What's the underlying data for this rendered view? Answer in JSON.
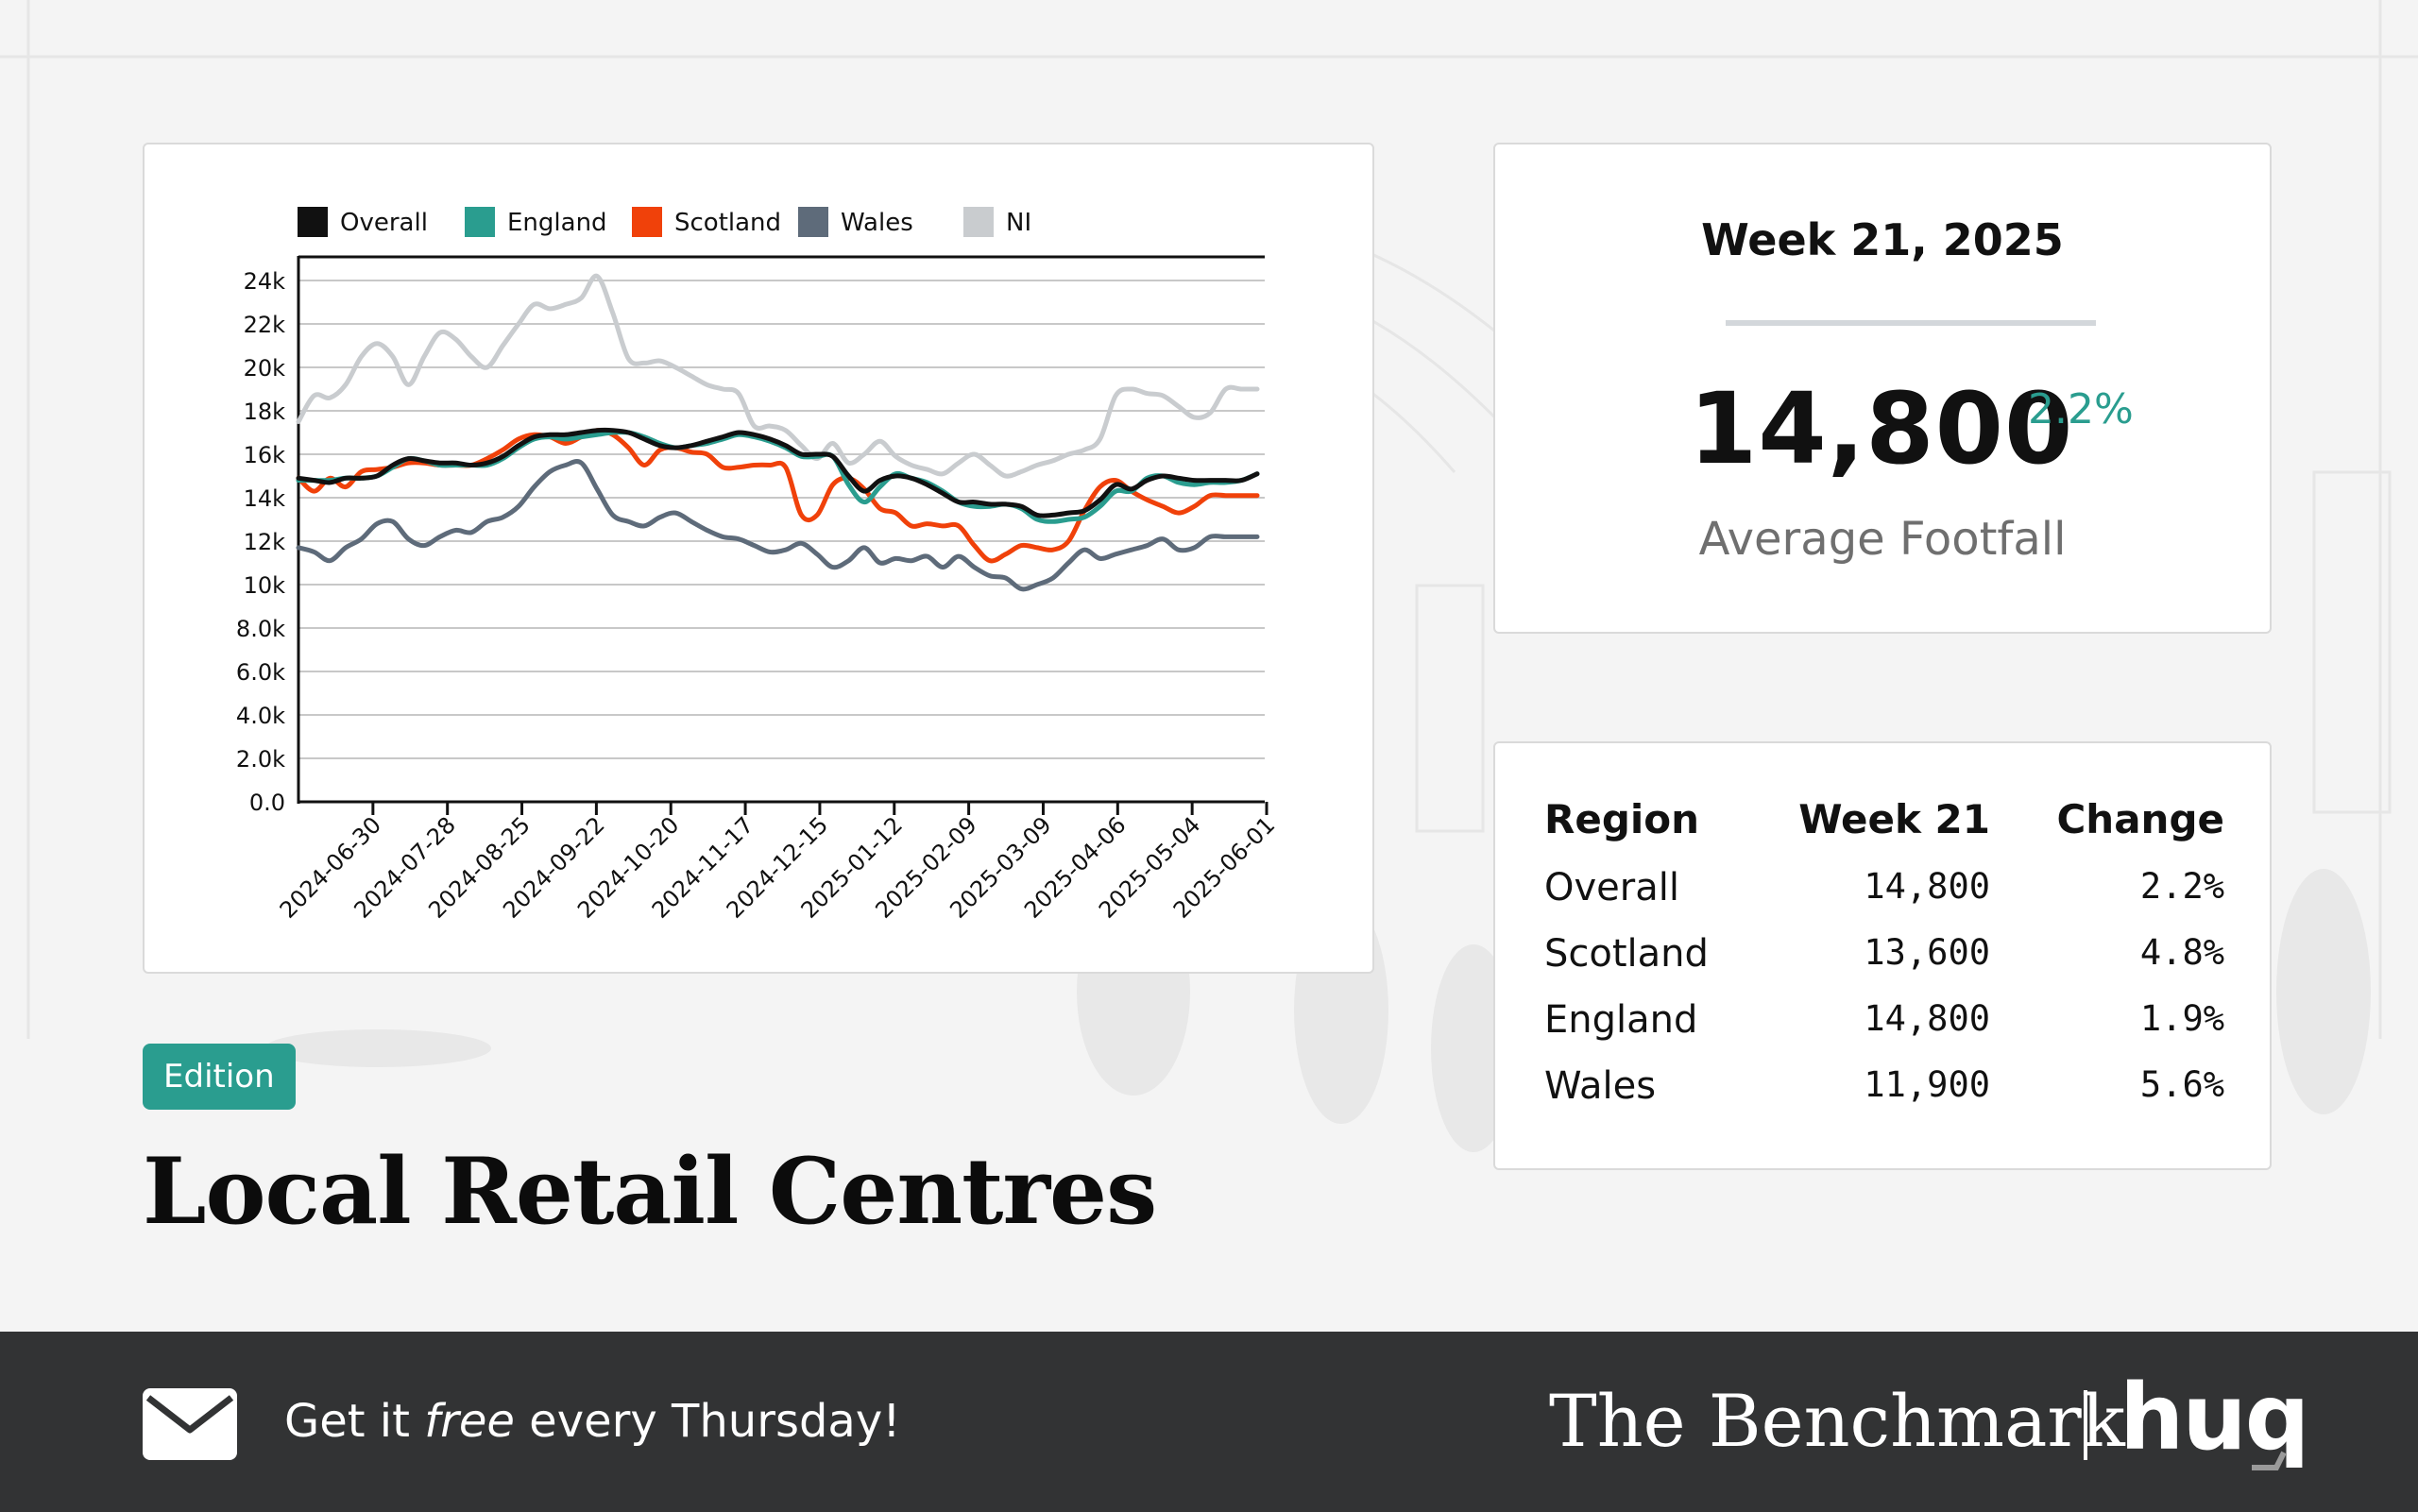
{
  "colors": {
    "accent": "#2a9d8f",
    "overall": "#111111",
    "england": "#2a9d8f",
    "scotland": "#f0410a",
    "wales": "#5e6b7a",
    "ni": "#c9cccf",
    "footer_bg": "#323334"
  },
  "summary": {
    "week_title": "Week 21, 2025",
    "value": "14,800",
    "change": "2.2%",
    "label": "Average Footfall"
  },
  "table": {
    "headers": [
      "Region",
      "Week 21",
      "Change"
    ],
    "rows": [
      {
        "region": "Overall",
        "value": "14,800",
        "change": "2.2%"
      },
      {
        "region": "Scotland",
        "value": "13,600",
        "change": "4.8%"
      },
      {
        "region": "England",
        "value": "14,800",
        "change": "1.9%"
      },
      {
        "region": "Wales",
        "value": "11,900",
        "change": "5.6%"
      }
    ]
  },
  "badge": "Edition",
  "heading": "Local Retail Centres",
  "footer": {
    "cta_prefix": "Get it ",
    "cta_em": "free",
    "cta_suffix": " every Thursday!",
    "brand": "The Benchmark",
    "logo": "huq",
    "mail_icon": "envelope-icon"
  },
  "chart_data": {
    "type": "line",
    "title": "",
    "xlabel": "",
    "ylabel": "",
    "ylim": [
      0,
      25000
    ],
    "yticks": [
      0,
      2000,
      4000,
      6000,
      8000,
      10000,
      12000,
      14000,
      16000,
      18000,
      20000,
      22000,
      24000
    ],
    "ytick_labels": [
      "0.0",
      "2.0k",
      "4.0k",
      "6.0k",
      "8.0k",
      "10k",
      "12k",
      "14k",
      "16k",
      "18k",
      "20k",
      "22k",
      "24k"
    ],
    "x_start": "2024-06-02",
    "x_end": "2025-06-01",
    "xtick_labels": [
      "2024-06-30",
      "2024-07-28",
      "2024-08-25",
      "2024-09-22",
      "2024-10-20",
      "2024-11-17",
      "2024-12-15",
      "2025-01-12",
      "2025-02-09",
      "2025-03-09",
      "2025-04-06",
      "2025-05-04",
      "2025-06-01"
    ],
    "grid": true,
    "legend_position": "top",
    "series": [
      {
        "name": "Overall",
        "values": [
          14900,
          14800,
          14700,
          14900,
          14900,
          15000,
          15500,
          15800,
          15700,
          15600,
          15600,
          15500,
          15600,
          15900,
          16400,
          16800,
          16900,
          16900,
          17000,
          17100,
          17100,
          17000,
          16700,
          16400,
          16300,
          16400,
          16600,
          16800,
          17000,
          16900,
          16700,
          16400,
          16000,
          16000,
          15900,
          15000,
          14300,
          14800,
          15000,
          14900,
          14600,
          14200,
          13800,
          13800,
          13700,
          13700,
          13600,
          13200,
          13200,
          13300,
          13400,
          13900,
          14600,
          14400,
          14800,
          15000,
          14900,
          14800,
          14800,
          14800,
          14800,
          15100
        ]
      },
      {
        "name": "England",
        "values": [
          14800,
          14800,
          14800,
          14900,
          14900,
          15000,
          15400,
          15800,
          15700,
          15500,
          15500,
          15500,
          15500,
          15800,
          16300,
          16700,
          16800,
          16700,
          16800,
          16900,
          17000,
          17000,
          16800,
          16500,
          16300,
          16400,
          16500,
          16700,
          16900,
          16800,
          16600,
          16300,
          15900,
          15900,
          15900,
          14600,
          13800,
          14500,
          15100,
          14900,
          14700,
          14300,
          13800,
          13600,
          13600,
          13700,
          13500,
          13000,
          12900,
          13000,
          13100,
          13600,
          14300,
          14300,
          14900,
          15000,
          14700,
          14600,
          14700,
          14700,
          14800,
          15100
        ]
      },
      {
        "name": "Scotland",
        "values": [
          14900,
          14300,
          14900,
          14500,
          15200,
          15300,
          15400,
          15600,
          15600,
          15500,
          15500,
          15500,
          15800,
          16200,
          16700,
          16900,
          16800,
          16500,
          16800,
          17100,
          16900,
          16300,
          15500,
          16200,
          16300,
          16100,
          16000,
          15400,
          15400,
          15500,
          15500,
          15400,
          13200,
          13200,
          14600,
          14900,
          14400,
          13500,
          13300,
          12700,
          12800,
          12700,
          12700,
          11800,
          11100,
          11400,
          11800,
          11700,
          11600,
          12000,
          13400,
          14500,
          14800,
          14300,
          13900,
          13600,
          13300,
          13600,
          14100,
          14100,
          14100,
          14100
        ]
      },
      {
        "name": "Wales",
        "values": [
          11700,
          11500,
          11100,
          11700,
          12100,
          12800,
          12900,
          12100,
          11800,
          12200,
          12500,
          12400,
          12900,
          13100,
          13600,
          14500,
          15200,
          15500,
          15600,
          14400,
          13200,
          12900,
          12700,
          13100,
          13300,
          12900,
          12500,
          12200,
          12100,
          11800,
          11500,
          11600,
          11900,
          11400,
          10800,
          11100,
          11700,
          11000,
          11200,
          11100,
          11300,
          10800,
          11300,
          10800,
          10400,
          10300,
          9800,
          10000,
          10300,
          11000,
          11600,
          11200,
          11400,
          11600,
          11800,
          12100,
          11600,
          11700,
          12200,
          12200,
          12200,
          12200
        ]
      },
      {
        "name": "NI",
        "values": [
          17500,
          18700,
          18600,
          19200,
          20500,
          21100,
          20500,
          19200,
          20500,
          21600,
          21300,
          20500,
          20000,
          21000,
          22000,
          22900,
          22700,
          22900,
          23200,
          24200,
          22500,
          20400,
          20200,
          20300,
          20000,
          19600,
          19200,
          19000,
          18800,
          17300,
          17300,
          17100,
          16400,
          15800,
          16500,
          15600,
          16000,
          16600,
          15900,
          15500,
          15300,
          15100,
          15600,
          16000,
          15500,
          15000,
          15200,
          15500,
          15700,
          16000,
          16200,
          16700,
          18700,
          19000,
          18800,
          18700,
          18200,
          17700,
          17900,
          19000,
          19000,
          19000
        ]
      }
    ]
  }
}
